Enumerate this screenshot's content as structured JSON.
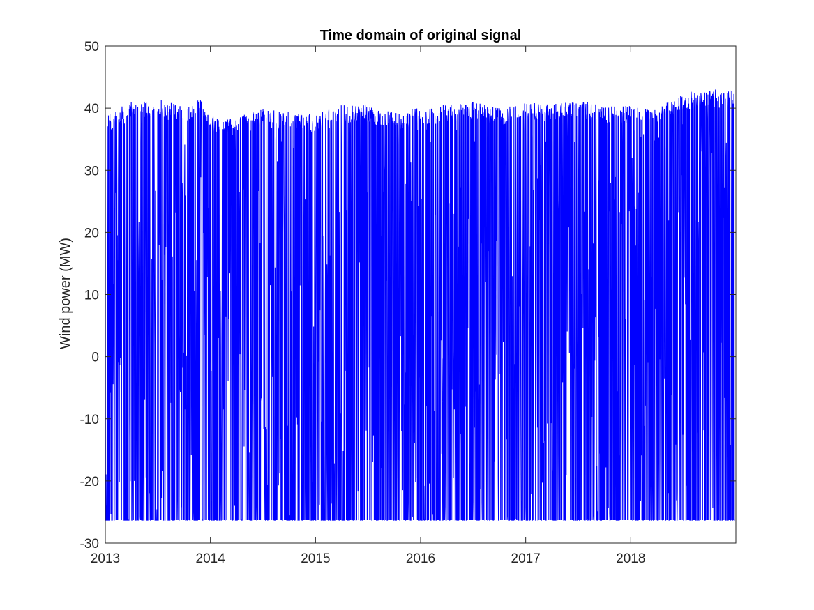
{
  "chart_data": {
    "type": "line",
    "title": "Time domain of original signal",
    "xlabel": "",
    "ylabel": "Wind power (MW)",
    "xlim": [
      2013,
      2019
    ],
    "ylim": [
      -30,
      50
    ],
    "x_ticks": [
      "2013",
      "2014",
      "2015",
      "2016",
      "2017",
      "2018"
    ],
    "y_ticks": [
      "-30",
      "-20",
      "-10",
      "0",
      "10",
      "20",
      "30",
      "40",
      "50"
    ],
    "grid": false,
    "legend": "none",
    "colors": {
      "series": "#0000ff",
      "axes": "#262626"
    },
    "series": [
      {
        "name": "",
        "x_range": [
          2013.0,
          2018.99
        ],
        "y_floor": -26.3,
        "y_upper_envelope": [
          [
            2013.0,
            39
          ],
          [
            2013.25,
            41
          ],
          [
            2013.5,
            41.5
          ],
          [
            2013.75,
            40.5
          ],
          [
            2013.9,
            41.8
          ],
          [
            2014.0,
            39
          ],
          [
            2014.25,
            38.5
          ],
          [
            2014.5,
            40
          ],
          [
            2014.75,
            39.5
          ],
          [
            2015.0,
            39
          ],
          [
            2015.25,
            40.5
          ],
          [
            2015.5,
            40.5
          ],
          [
            2015.75,
            39.5
          ],
          [
            2016.0,
            40.2
          ],
          [
            2016.25,
            40.5
          ],
          [
            2016.5,
            41
          ],
          [
            2016.75,
            40
          ],
          [
            2017.0,
            41
          ],
          [
            2017.25,
            40.8
          ],
          [
            2017.5,
            41.2
          ],
          [
            2017.75,
            40.5
          ],
          [
            2018.0,
            40.5
          ],
          [
            2018.25,
            40
          ],
          [
            2018.5,
            42.5
          ],
          [
            2018.75,
            43
          ],
          [
            2018.99,
            43.2
          ]
        ],
        "note_gaps": [
          2014.07,
          2017.1
        ]
      }
    ]
  }
}
